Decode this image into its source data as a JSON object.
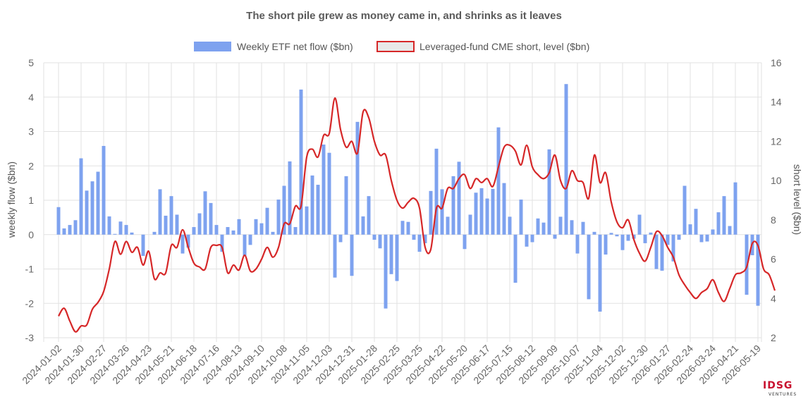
{
  "chart_data": {
    "type": "bar",
    "title": "The short pile grew as money came in, and shrinks as it leaves",
    "ylabel_left": "weekly flow ($bn)",
    "ylabel_right": "short level ($bn)",
    "ylim_left": [
      -3,
      5
    ],
    "ylim_right": [
      2,
      16
    ],
    "yticks_left": [
      -3,
      -2,
      -1,
      0,
      1,
      2,
      3,
      4,
      5
    ],
    "yticks_right": [
      2,
      4,
      6,
      8,
      10,
      12,
      14,
      16
    ],
    "grid": true,
    "legend_position": "top",
    "xtick_labels": [
      "2024-01-02",
      "2024-01-30",
      "2024-02-27",
      "2024-03-26",
      "2024-04-23",
      "2024-05-21",
      "2024-06-18",
      "2024-07-16",
      "2024-08-13",
      "2024-09-10",
      "2024-10-08",
      "2024-11-05",
      "2024-12-03",
      "2024-12-31",
      "2025-01-28",
      "2025-02-25",
      "2025-03-25",
      "2025-04-22",
      "2025-05-20",
      "2025-06-17",
      "2025-07-15",
      "2025-08-12",
      "2025-09-09",
      "2025-10-07",
      "2025-11-04",
      "2025-12-02",
      "2025-12-30",
      "2026-01-27",
      "2026-02-24",
      "2026-03-24",
      "2026-04-21",
      "2026-05-19"
    ],
    "series": [
      {
        "name": "Weekly ETF net flow ($bn)",
        "type": "bar",
        "axis": "left",
        "color": "#7ea2ef",
        "values": [
          0.8,
          0.18,
          0.28,
          0.42,
          2.22,
          1.28,
          1.55,
          1.83,
          2.58,
          0.53,
          0.02,
          0.38,
          0.28,
          0.06,
          0.0,
          -0.62,
          0.0,
          0.08,
          1.32,
          0.55,
          1.12,
          0.58,
          -0.55,
          -0.38,
          0.22,
          0.62,
          1.26,
          0.92,
          0.28,
          -0.5,
          0.22,
          0.12,
          0.45,
          -0.62,
          -0.3,
          0.45,
          0.33,
          0.78,
          0.08,
          1.02,
          1.42,
          2.13,
          0.22,
          4.22,
          0.82,
          1.72,
          1.45,
          2.62,
          2.38,
          -1.25,
          -0.22,
          1.7,
          -1.2,
          3.28,
          0.53,
          1.12,
          -0.15,
          -0.4,
          -2.15,
          -1.15,
          -1.35,
          0.4,
          0.37,
          -0.15,
          -0.5,
          -0.25,
          1.27,
          2.5,
          1.32,
          0.52,
          1.7,
          2.12,
          -0.42,
          0.58,
          1.22,
          1.35,
          1.05,
          1.33,
          3.12,
          1.5,
          0.52,
          -1.4,
          1.02,
          -0.35,
          -0.22,
          0.47,
          0.35,
          2.48,
          -0.12,
          0.52,
          4.38,
          0.42,
          -0.55,
          0.37,
          -1.88,
          0.08,
          -2.24,
          -0.58,
          0.05,
          -0.05,
          -0.45,
          -0.18,
          -0.12,
          0.58,
          -0.25,
          0.06,
          -1.0,
          -1.05,
          -0.3,
          -0.78,
          -0.15,
          1.42,
          0.3,
          0.75,
          -0.22,
          -0.2,
          0.15,
          0.65,
          1.12,
          0.25,
          1.52,
          0.0,
          -1.75,
          -0.6,
          -2.07
        ]
      },
      {
        "name": "Leveraged-fund CME short, level ($bn)",
        "type": "line",
        "axis": "right",
        "color": "#d62728",
        "values": [
          3.1,
          3.5,
          2.85,
          2.3,
          2.6,
          2.65,
          3.45,
          3.8,
          4.35,
          5.5,
          6.9,
          6.25,
          6.9,
          6.35,
          6.6,
          5.7,
          6.4,
          5.0,
          5.3,
          5.3,
          6.7,
          6.6,
          7.5,
          6.6,
          5.8,
          5.6,
          5.5,
          6.6,
          6.7,
          6.6,
          5.3,
          5.7,
          5.45,
          6.2,
          5.4,
          5.5,
          6.0,
          6.6,
          6.1,
          6.6,
          7.8,
          7.8,
          8.7,
          8.7,
          11.2,
          11.6,
          11.2,
          12.3,
          12.4,
          14.2,
          12.6,
          11.7,
          12.0,
          11.4,
          13.5,
          13.2,
          12.0,
          11.3,
          11.3,
          10.0,
          9.0,
          8.6,
          8.9,
          9.1,
          8.6,
          6.6,
          6.5,
          8.6,
          8.6,
          9.6,
          9.6,
          10.1,
          10.3,
          9.6,
          10.1,
          9.9,
          10.1,
          9.7,
          10.7,
          11.7,
          11.8,
          11.5,
          10.8,
          11.8,
          10.7,
          10.3,
          10.1,
          10.4,
          11.3,
          10.0,
          9.6,
          10.5,
          10.0,
          9.9,
          9.1,
          11.3,
          9.9,
          10.4,
          8.9,
          7.9,
          7.6,
          8.0,
          7.0,
          6.3,
          5.9,
          6.6,
          7.4,
          7.2,
          6.6,
          6.1,
          5.2,
          4.7,
          4.3,
          4.0,
          4.3,
          4.5,
          4.95,
          4.3,
          3.85,
          4.5,
          5.2,
          5.3,
          5.6,
          6.8,
          6.7,
          5.5,
          5.2,
          4.4
        ]
      }
    ]
  },
  "watermark": {
    "main": "IDSG",
    "sub": "VENTURES"
  }
}
